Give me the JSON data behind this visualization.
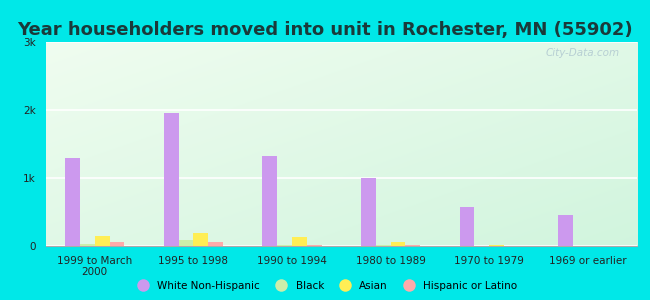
{
  "title": "Year householders moved into unit in Rochester, MN (55902)",
  "categories": [
    "1999 to March\n2000",
    "1995 to 1998",
    "1990 to 1994",
    "1980 to 1989",
    "1970 to 1979",
    "1969 or earlier"
  ],
  "series": {
    "White Non-Hispanic": [
      1300,
      1950,
      1330,
      1000,
      580,
      460
    ],
    "Black": [
      30,
      90,
      15,
      10,
      5,
      0
    ],
    "Asian": [
      150,
      195,
      130,
      55,
      10,
      0
    ],
    "Hispanic or Latino": [
      60,
      55,
      10,
      10,
      5,
      0
    ]
  },
  "colors": {
    "White Non-Hispanic": "#cc99ee",
    "Black": "#cceeaa",
    "Asian": "#ffee55",
    "Hispanic or Latino": "#ffaaaa"
  },
  "ylim": [
    0,
    3000
  ],
  "yticks": [
    0,
    1000,
    2000,
    3000
  ],
  "ytick_labels": [
    "0",
    "1k",
    "2k",
    "3k"
  ],
  "outer_bg": "#00e8e8",
  "title_color": "#1a3a3a",
  "title_fontsize": 13,
  "bar_width": 0.15,
  "watermark": "City-Data.com"
}
